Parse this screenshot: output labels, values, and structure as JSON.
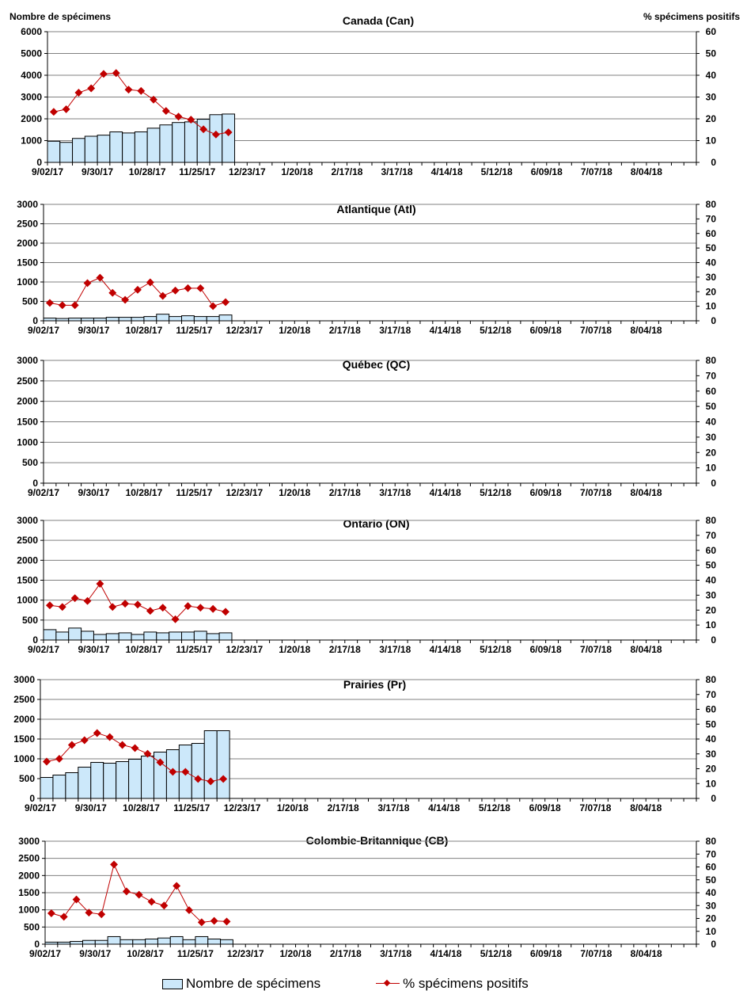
{
  "left_axis_title": "Nombre de spécimens",
  "right_axis_title": "% spécimens positifs",
  "legend": {
    "bars": "Nombre de spécimens",
    "line": "% spécimens positifs"
  },
  "colors": {
    "bar_fill": "#cce8fa",
    "bar_stroke": "#000000",
    "line": "#c00000",
    "grid": "#808080"
  },
  "chart_data": [
    {
      "type": "bar+line",
      "title": "Canada (Can)",
      "weeks_total": 52,
      "x_tick_labels": [
        "9/02/17",
        "9/30/17",
        "10/28/17",
        "11/25/17",
        "12/23/17",
        "1/20/18",
        "2/17/18",
        "3/17/18",
        "4/14/18",
        "5/12/18",
        "6/09/18",
        "7/07/18",
        "8/04/18"
      ],
      "ylim": [
        0,
        6000
      ],
      "y_ticks": [
        "0",
        "1000",
        "2000",
        "3000",
        "4000",
        "5000",
        "6000"
      ],
      "y2lim": [
        0,
        60
      ],
      "y2_ticks": [
        "0",
        "10",
        "20",
        "30",
        "40",
        "50",
        "60"
      ],
      "specimens": [
        970,
        920,
        1100,
        1200,
        1250,
        1400,
        1350,
        1400,
        1570,
        1720,
        1830,
        1860,
        1980,
        2190,
        2220
      ],
      "pct_positive": [
        23.2,
        24.4,
        32,
        34,
        40.6,
        41,
        33.4,
        32.8,
        28.8,
        23.6,
        21,
        19.6,
        15.2,
        12.8,
        13.8
      ]
    },
    {
      "type": "bar+line",
      "title": "Atlantique (Atl)",
      "weeks_total": 52,
      "x_tick_labels": [
        "9/02/17",
        "9/30/17",
        "10/28/17",
        "11/25/17",
        "12/23/17",
        "1/20/18",
        "2/17/18",
        "3/17/18",
        "4/14/18",
        "5/12/18",
        "6/09/18",
        "7/07/18",
        "8/04/18"
      ],
      "ylim": [
        0,
        3000
      ],
      "y_ticks": [
        "0",
        "500",
        "1000",
        "1500",
        "2000",
        "2500",
        "3000"
      ],
      "y2lim": [
        0,
        80
      ],
      "y2_ticks": [
        "0",
        "10",
        "20",
        "30",
        "40",
        "50",
        "60",
        "70",
        "80"
      ],
      "specimens": [
        70,
        60,
        70,
        70,
        70,
        90,
        90,
        90,
        110,
        170,
        110,
        130,
        110,
        110,
        150
      ],
      "pct_positive": [
        12.3,
        10.7,
        10.7,
        25.9,
        29.6,
        19.2,
        14.4,
        21.3,
        26.4,
        17.1,
        20.8,
        22.4,
        22.4,
        10.1,
        12.8
      ]
    },
    {
      "type": "bar+line",
      "title": "Québec (QC)",
      "weeks_total": 52,
      "x_tick_labels": [
        "9/02/17",
        "9/30/17",
        "10/28/17",
        "11/25/17",
        "12/23/17",
        "1/20/18",
        "2/17/18",
        "3/17/18",
        "4/14/18",
        "5/12/18",
        "6/09/18",
        "7/07/18",
        "8/04/18"
      ],
      "ylim": [
        0,
        3000
      ],
      "y_ticks": [
        "0",
        "500",
        "1000",
        "1500",
        "2000",
        "2500",
        "3000"
      ],
      "y2lim": [
        0,
        80
      ],
      "y2_ticks": [
        "0",
        "10",
        "20",
        "30",
        "40",
        "50",
        "60",
        "70",
        "80"
      ],
      "specimens": [],
      "pct_positive": []
    },
    {
      "type": "bar+line",
      "title": "Ontario (ON)",
      "weeks_total": 52,
      "x_tick_labels": [
        "9/02/17",
        "9/30/17",
        "10/28/17",
        "11/25/17",
        "12/23/17",
        "1/20/18",
        "2/17/18",
        "3/17/18",
        "4/14/18",
        "5/12/18",
        "6/09/18",
        "7/07/18",
        "8/04/18"
      ],
      "ylim": [
        0,
        3000
      ],
      "y_ticks": [
        "0",
        "500",
        "1000",
        "1500",
        "2000",
        "2500",
        "3000"
      ],
      "y2lim": [
        0,
        80
      ],
      "y2_ticks": [
        "0",
        "10",
        "20",
        "30",
        "40",
        "50",
        "60",
        "70",
        "80"
      ],
      "specimens": [
        260,
        200,
        300,
        220,
        140,
        160,
        180,
        140,
        200,
        180,
        200,
        200,
        220,
        160,
        180
      ],
      "pct_positive": [
        23.2,
        22.1,
        28,
        26.1,
        37.6,
        22.1,
        24.3,
        23.7,
        19.5,
        21.6,
        13.9,
        22.7,
        21.6,
        20.8,
        18.9
      ]
    },
    {
      "type": "bar+line",
      "title": "Prairies (Pr)",
      "weeks_total": 52,
      "x_tick_labels": [
        "9/02/17",
        "9/30/17",
        "10/28/17",
        "11/25/17",
        "12/23/17",
        "1/20/18",
        "2/17/18",
        "3/17/18",
        "4/14/18",
        "5/12/18",
        "6/09/18",
        "7/07/18",
        "8/04/18"
      ],
      "ylim": [
        0,
        3000
      ],
      "y_ticks": [
        "0",
        "500",
        "1000",
        "1500",
        "2000",
        "2500",
        "3000"
      ],
      "y2lim": [
        0,
        80
      ],
      "y2_ticks": [
        "0",
        "10",
        "20",
        "30",
        "40",
        "50",
        "60",
        "70",
        "80"
      ],
      "specimens": [
        530,
        590,
        650,
        790,
        910,
        890,
        930,
        990,
        1070,
        1170,
        1230,
        1350,
        1390,
        1710,
        1710
      ],
      "pct_positive": [
        24.8,
        26.7,
        36,
        39.2,
        44,
        41.3,
        36,
        33.9,
        30.1,
        24.3,
        17.9,
        17.9,
        13.1,
        11.5,
        13.1
      ]
    },
    {
      "type": "bar+line",
      "title": "Colombie-Britannique (CB)",
      "weeks_total": 52,
      "x_tick_labels": [
        "9/02/17",
        "9/30/17",
        "10/28/17",
        "11/25/17",
        "12/23/17",
        "1/20/18",
        "2/17/18",
        "3/17/18",
        "4/14/18",
        "5/12/18",
        "6/09/18",
        "7/07/18",
        "8/04/18"
      ],
      "ylim": [
        0,
        3000
      ],
      "y_ticks": [
        "0",
        "500",
        "1000",
        "1500",
        "2000",
        "2500",
        "3000"
      ],
      "y2lim": [
        0,
        80
      ],
      "y2_ticks": [
        "0",
        "10",
        "20",
        "30",
        "40",
        "50",
        "60",
        "70",
        "80"
      ],
      "specimens": [
        60,
        60,
        80,
        110,
        110,
        220,
        130,
        130,
        150,
        180,
        220,
        130,
        220,
        150,
        130
      ],
      "pct_positive": [
        24,
        21.3,
        34.7,
        24.5,
        23.2,
        61.9,
        41,
        38.4,
        33,
        30,
        45.3,
        26.4,
        17,
        18.1,
        17.6
      ]
    }
  ]
}
